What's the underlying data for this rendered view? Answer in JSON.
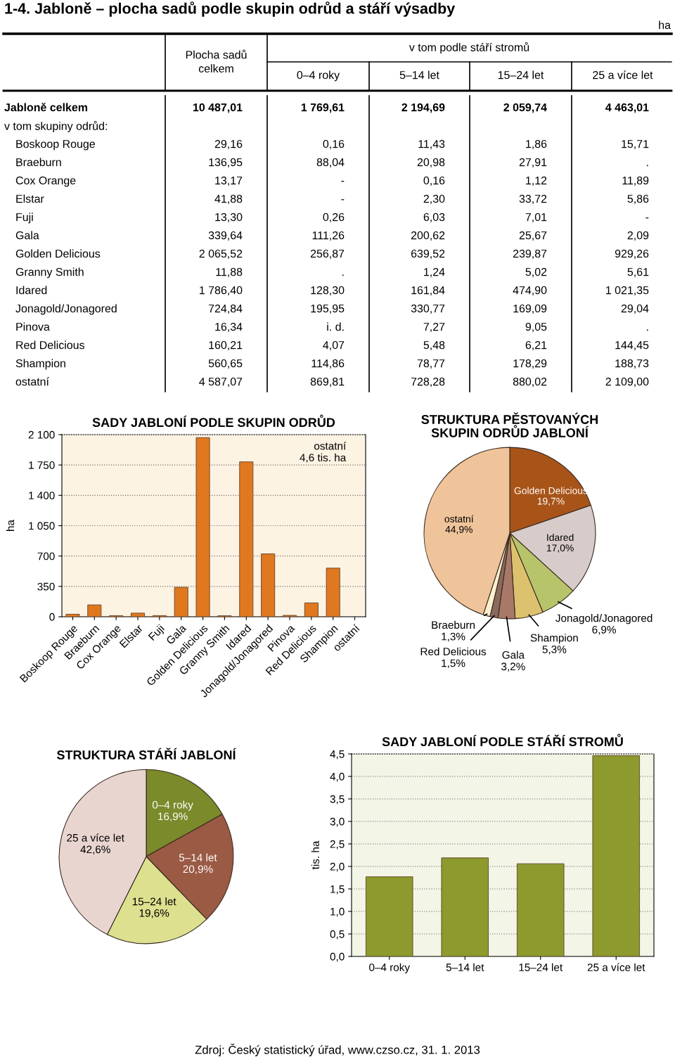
{
  "chart_data": [
    {
      "type": "other",
      "title": "1-4. Jabloně – plocha sadů podle skupin odrůd a stáří výsadby",
      "categories": [
        "Plocha sadů\ncelkem",
        "0–4 roky",
        "5–14 let",
        "15–24 let",
        "25 a více let"
      ],
      "y_categories": [
        "Jabloně celkem",
        "v tom skupiny odrůd:",
        "Boskoop Rouge",
        "Braeburn",
        "Cox Orange",
        "Elstar",
        "Fuji",
        "Gala",
        "Golden Delicious",
        "Granny Smith",
        "Idared",
        "Jonagold/Jonagored",
        "Pinova",
        "Red Delicious",
        "Shampion",
        "ostatní"
      ],
      "cell_labels": [
        [
          "10 487,01",
          "1 769,61",
          "2 194,69",
          "2 059,74",
          "4 463,01"
        ],
        [
          null,
          null,
          null,
          null,
          null
        ],
        [
          "29,16",
          "0,16",
          "11,43",
          "1,86",
          "15,71"
        ],
        [
          "136,95",
          "88,04",
          "20,98",
          "27,91",
          "."
        ],
        [
          "13,17",
          "-",
          "0,16",
          "1,12",
          "11,89"
        ],
        [
          "41,88",
          "-",
          "2,30",
          "33,72",
          "5,86"
        ],
        [
          "13,30",
          "0,26",
          "6,03",
          "7,01",
          "-"
        ],
        [
          "339,64",
          "111,26",
          "200,62",
          "25,67",
          "2,09"
        ],
        [
          "2 065,52",
          "256,87",
          "639,52",
          "239,87",
          "929,26"
        ],
        [
          "11,88",
          ".",
          "1,24",
          "5,02",
          "5,61"
        ],
        [
          "1 786,40",
          "128,30",
          "161,84",
          "474,90",
          "1 021,35"
        ],
        [
          "724,84",
          "195,95",
          "330,77",
          "169,09",
          "29,04"
        ],
        [
          "16,34",
          "i. d.",
          "7,27",
          "9,05",
          "."
        ],
        [
          "160,21",
          "4,07",
          "5,48",
          "6,21",
          "144,45"
        ],
        [
          "560,65",
          "114,86",
          "78,77",
          "178,29",
          "188,73"
        ],
        [
          "4 587,07",
          "869,81",
          "728,28",
          "880,02",
          "2 109,00"
        ]
      ],
      "annotations": [
        "v tom podle stáří stromů",
        "ha"
      ]
    },
    {
      "type": "bar",
      "title": "SADY JABLONÍ PODLE SKUPIN ODRŮD",
      "ylabel": "ha",
      "categories": [
        "Boskoop Rouge",
        "Braeburn",
        "Cox Orange",
        "Elstar",
        "Fuji",
        "Gala",
        "Golden Delicious",
        "Granny Smith",
        "Idared",
        "Jonagold/Jonagored",
        "Pinova",
        "Red Delicious",
        "Shampion",
        "ostatní"
      ],
      "values": [
        29.16,
        136.95,
        13.17,
        41.88,
        13.3,
        339.64,
        2065.52,
        11.88,
        1786.4,
        724.84,
        16.34,
        160.21,
        560.65,
        null
      ],
      "color": "#e07820",
      "ylim": [
        0,
        2100
      ],
      "yticks": [
        0,
        350,
        700,
        {
          "value": 1050,
          "label": "1 050"
        },
        {
          "value": 1400,
          "label": "1 400"
        },
        {
          "value": 1750,
          "label": "1 750"
        },
        {
          "value": 2100,
          "label": "2 100"
        }
      ],
      "grid": "y",
      "annotations": [
        "ostatní\n4,6 tis. ha"
      ]
    },
    {
      "type": "pie",
      "title": "STRUKTURA PĚSTOVANÝCH\nSKUPIN ODRŮD JABLONÍ",
      "categories": [
        "Golden Delicious",
        "Idared",
        "Jonagold/Jonagored",
        "Shampion",
        "Gala",
        "Red Delicious",
        "Braeburn",
        "ostatní"
      ],
      "values": [
        19.7,
        17.0,
        6.9,
        5.3,
        3.2,
        1.5,
        1.3,
        44.9
      ],
      "value_labels": [
        "19,7%",
        "17,0%",
        "6,9%",
        "5,3%",
        "3,2%",
        "1,5%",
        "1,3%",
        "44,9%"
      ],
      "colors": [
        "#a85418",
        "#d8ccca",
        "#b8c46a",
        "#dcc26e",
        "#a87868",
        "#8a6a5c",
        "#fbefcf",
        "#f0c49a"
      ]
    },
    {
      "type": "pie",
      "title": "STRUKTURA STÁŘÍ JABLONÍ",
      "categories": [
        "0–4 roky",
        "5–14 let",
        "15–24 let",
        "25 a více let"
      ],
      "values": [
        16.9,
        20.9,
        19.6,
        42.6
      ],
      "value_labels": [
        "16,9%",
        "20,9%",
        "19,6%",
        "42,6%"
      ],
      "colors": [
        "#7b8a2a",
        "#9a5a44",
        "#dde08e",
        "#e9d5d0"
      ]
    },
    {
      "type": "bar",
      "title": "SADY JABLONÍ PODLE STÁŘÍ STROMŮ",
      "ylabel": "tis. ha",
      "categories": [
        "0–4 roky",
        "5–14 let",
        "15–24 let",
        "25 a více let"
      ],
      "values": [
        1.77,
        2.19,
        2.06,
        4.46
      ],
      "color": "#8c9a2e",
      "ylim": [
        0,
        4.5
      ],
      "yticks": [
        {
          "value": 0,
          "label": "0,0"
        },
        {
          "value": 0.5,
          "label": "0,5"
        },
        {
          "value": 1,
          "label": "1,0"
        },
        {
          "value": 1.5,
          "label": "1,5"
        },
        {
          "value": 2,
          "label": "2,0"
        },
        {
          "value": 2.5,
          "label": "2,5"
        },
        {
          "value": 3,
          "label": "3,0"
        },
        {
          "value": 3.5,
          "label": "3,5"
        },
        {
          "value": 4,
          "label": "4,0"
        },
        {
          "value": 4.5,
          "label": "4,5"
        }
      ],
      "grid": "y",
      "annotations": [
        "Zdroj: Český statistický úřad, www.czso.cz, 31. 1. 2013"
      ]
    }
  ]
}
